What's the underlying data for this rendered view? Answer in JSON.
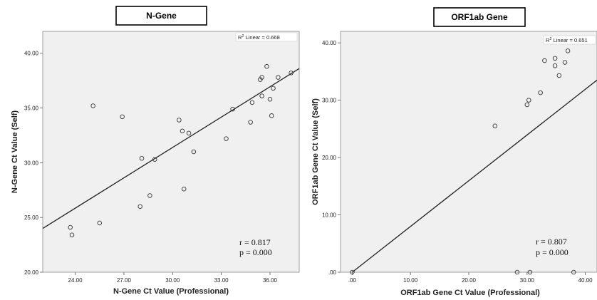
{
  "chart_data": [
    {
      "type": "scatter",
      "title": "N-Gene",
      "xlabel": "N-Gene  Ct  Value  (Professional)",
      "ylabel": "N-Gene  Ct  Value  (Self)",
      "xlim": [
        22.0,
        37.8
      ],
      "ylim": [
        20.0,
        42.0
      ],
      "xticks": [
        24,
        27,
        30,
        33,
        36
      ],
      "xtick_labels": [
        "24.00",
        "27.00",
        "30.00",
        "33.00",
        "36.00"
      ],
      "yticks": [
        20,
        25,
        30,
        35,
        40
      ],
      "ytick_labels": [
        "20.00",
        "25.00",
        "30.00",
        "35.00",
        "40.00"
      ],
      "r2_label": "R",
      "r2_text": "Linear = 0.668",
      "r_text": "r = 0.817",
      "p_text": "p = 0.000",
      "fit": [
        [
          22.0,
          24.0
        ],
        [
          37.8,
          38.6
        ]
      ],
      "x": [
        23.7,
        23.8,
        25.1,
        25.5,
        26.9,
        28.0,
        28.1,
        28.6,
        28.9,
        30.4,
        30.6,
        30.7,
        31.0,
        31.3,
        33.3,
        33.7,
        34.8,
        34.9,
        35.4,
        35.5,
        35.5,
        35.8,
        36.0,
        36.1,
        36.2,
        36.5,
        37.3
      ],
      "y": [
        24.1,
        23.4,
        35.2,
        24.5,
        34.2,
        26.0,
        30.4,
        27.0,
        30.3,
        33.9,
        32.9,
        27.6,
        32.7,
        31.0,
        32.2,
        34.9,
        33.7,
        35.5,
        37.6,
        37.8,
        36.1,
        38.8,
        35.8,
        34.3,
        36.8,
        37.8,
        38.2
      ]
    },
    {
      "type": "scatter",
      "title": "ORF1ab  Gene",
      "xlabel": "ORF1ab  Gene  Ct  Value  (Professional)",
      "ylabel": "ORF1ab  Gene  Ct  Value  (Self)",
      "xlim": [
        -2.0,
        42.0
      ],
      "ylim": [
        0.0,
        42.0
      ],
      "xticks": [
        0,
        10,
        20,
        30,
        40
      ],
      "xtick_labels": [
        ".00",
        "10.00",
        "20.00",
        "30.00",
        "40.00"
      ],
      "yticks": [
        0,
        10,
        20,
        30,
        40
      ],
      "ytick_labels": [
        ".00",
        "10.00",
        "20.00",
        "30.00",
        "40.00"
      ],
      "r2_label": "R",
      "r2_text": "Linear = 0.651",
      "r_text": "r = 0.807",
      "p_text": "p = 0.000",
      "fit": [
        [
          0.0,
          0.0
        ],
        [
          42.0,
          33.5
        ]
      ],
      "x": [
        0.0,
        24.5,
        28.3,
        30.0,
        30.3,
        30.5,
        32.3,
        33.0,
        34.8,
        34.8,
        35.5,
        36.5,
        37.0,
        38.0
      ],
      "y": [
        0.0,
        25.5,
        0.0,
        29.2,
        30.0,
        0.0,
        31.3,
        36.9,
        37.3,
        36.0,
        34.3,
        36.6,
        38.6,
        0.0
      ]
    }
  ]
}
